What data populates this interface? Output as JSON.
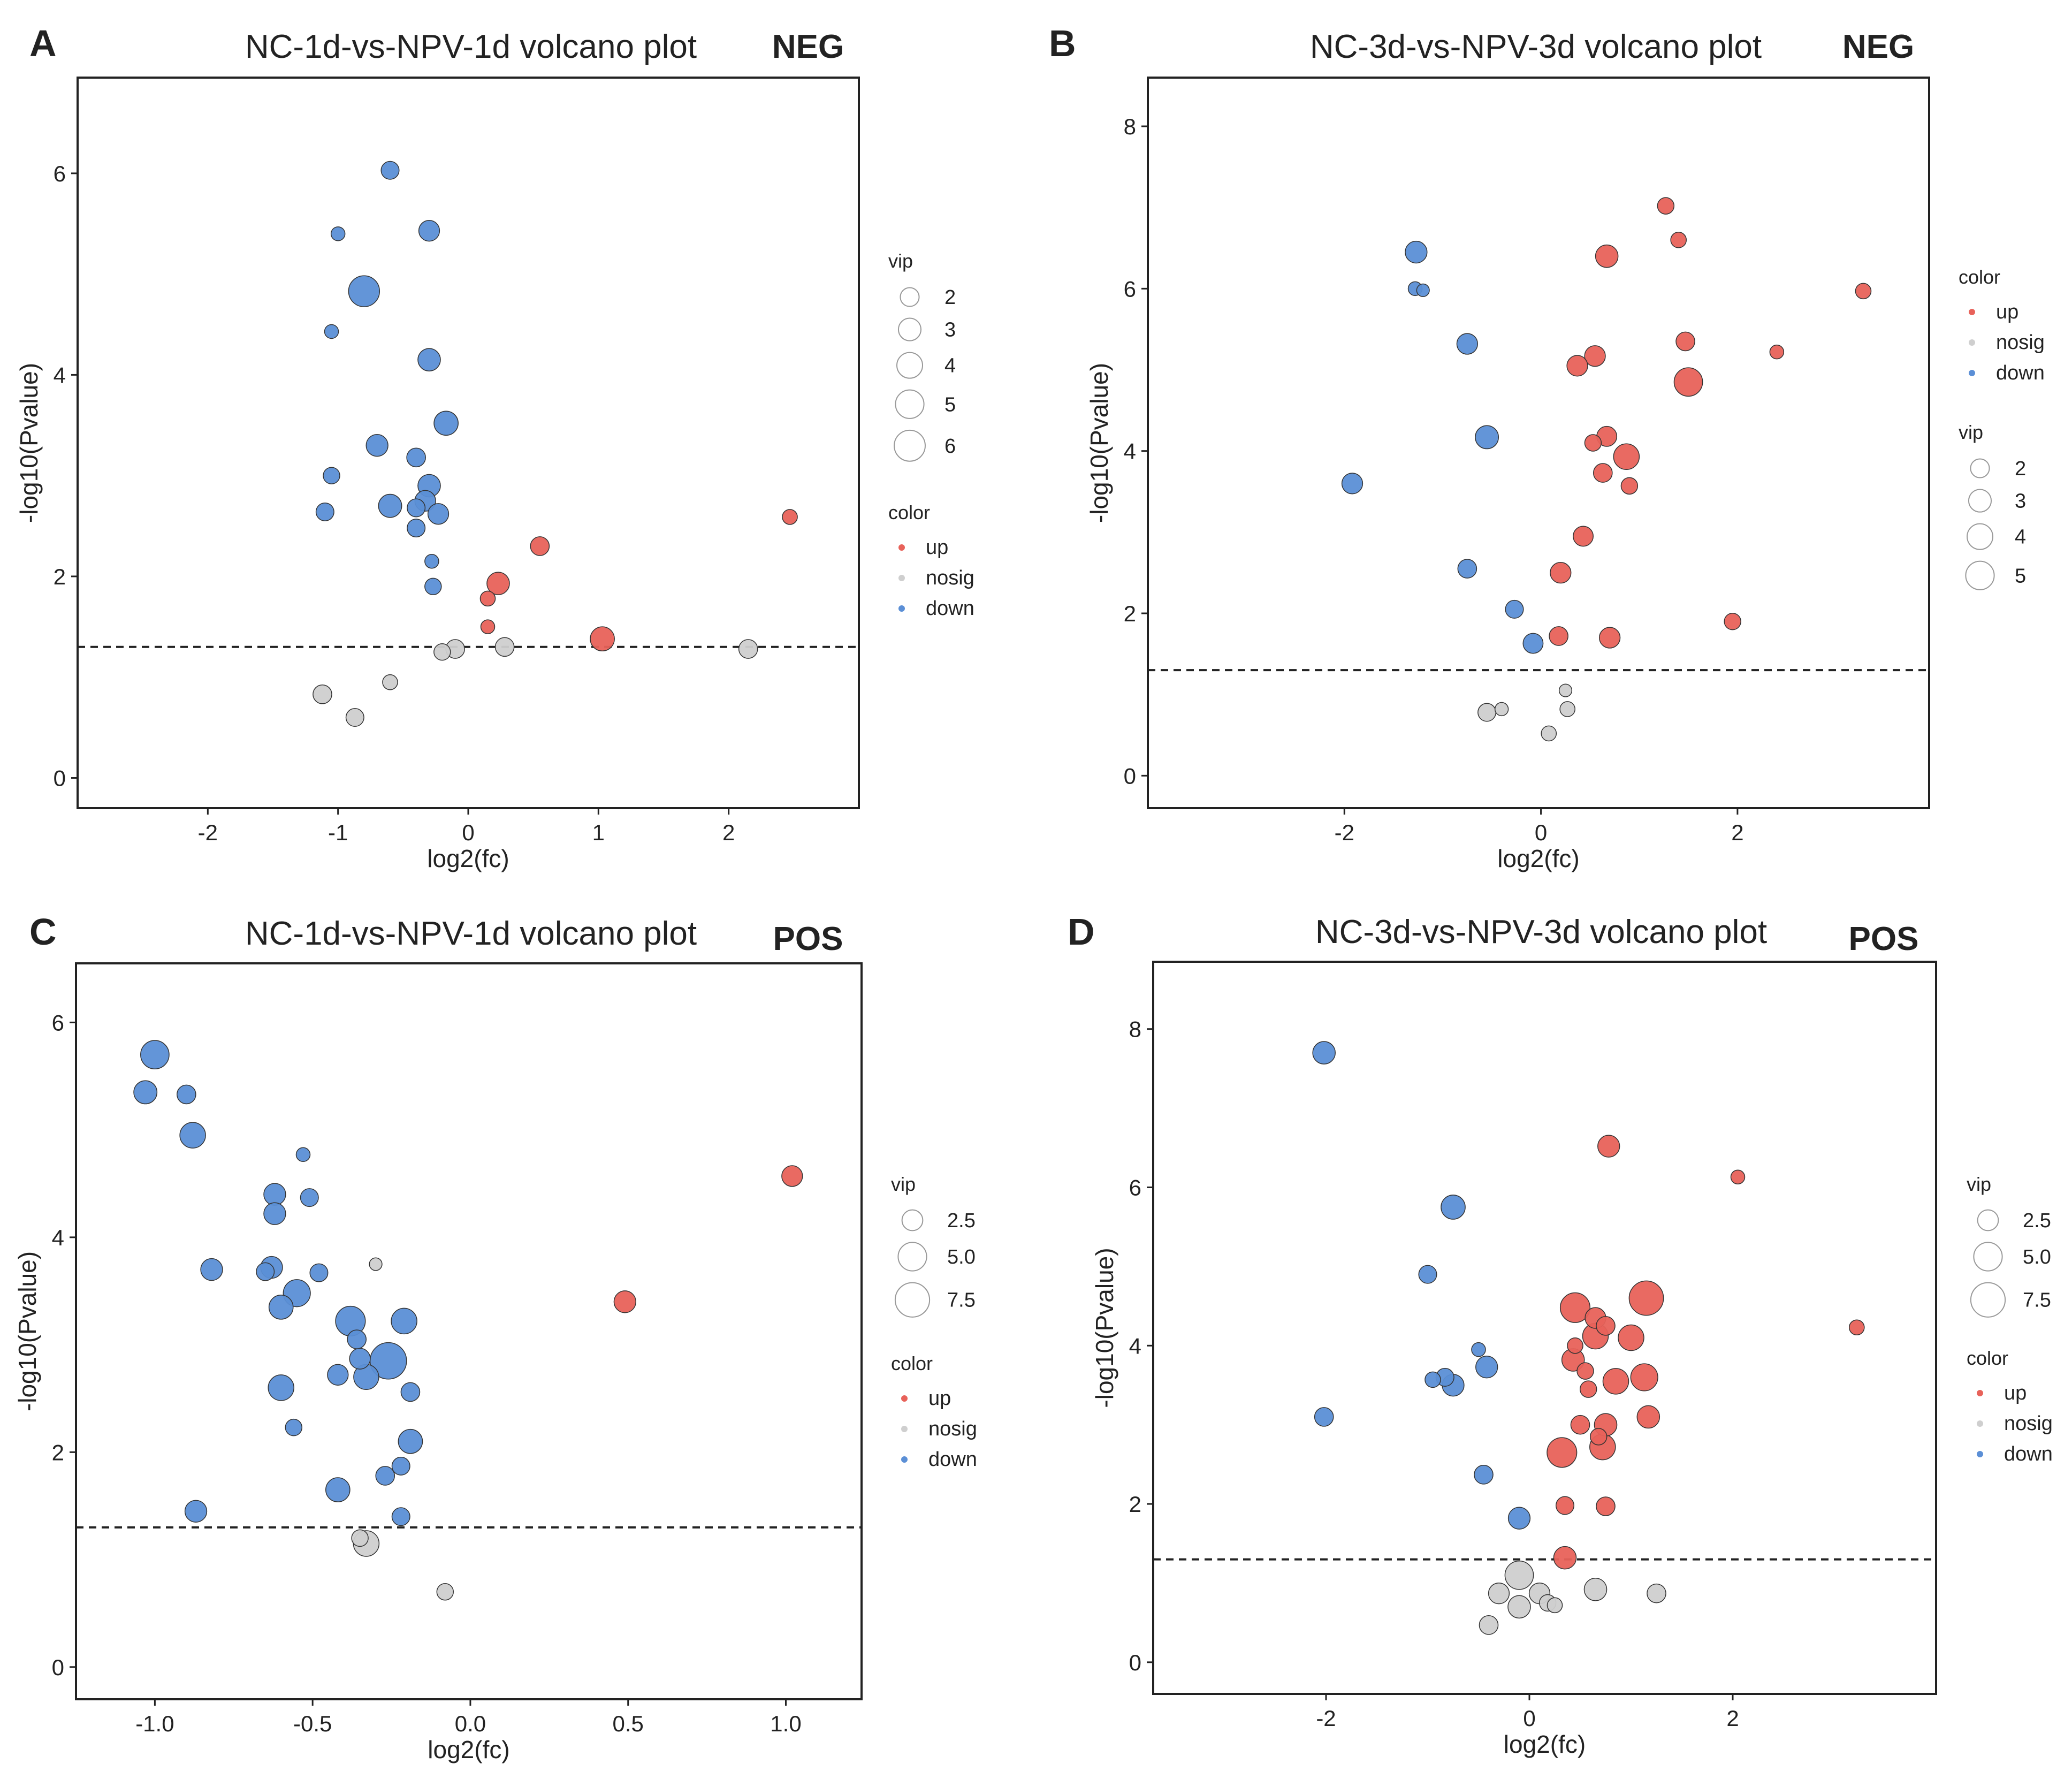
{
  "colors": {
    "up": "#e8625a",
    "nosig": "#cfcfcf",
    "down": "#5b8fd6"
  },
  "legend_text": {
    "vip": "vip",
    "color": "color",
    "up": "up",
    "nosig": "nosig",
    "down": "down"
  },
  "chart_data": [
    {
      "id": "A",
      "letter": "A",
      "type": "scatter",
      "title": "NC-1d-vs-NPV-1d volcano plot",
      "mode": "NEG",
      "xlabel": "log2(fc)",
      "ylabel": "-log10(Pvalue)",
      "xlim": [
        -3.0,
        3.0
      ],
      "ylim": [
        -0.3,
        6.95
      ],
      "xticks": [
        -2,
        -1,
        0,
        1,
        2
      ],
      "xtick_labels": [
        "-2",
        "-1",
        "0",
        "1",
        "2"
      ],
      "yticks": [
        0,
        2,
        4,
        6
      ],
      "ytick_labels": [
        "0",
        "2",
        "4",
        "6"
      ],
      "threshold": 1.3,
      "legend_order": [
        "vip",
        "color"
      ],
      "vip_legend": [
        2,
        3,
        4,
        5,
        6
      ],
      "vip_legend_labels": [
        "2",
        "3",
        "4",
        "5",
        "6"
      ],
      "points": [
        {
          "x": -0.6,
          "y": 6.03,
          "vip": 1.8,
          "c": "down"
        },
        {
          "x": -1.0,
          "y": 5.4,
          "vip": 1.0,
          "c": "down"
        },
        {
          "x": -0.3,
          "y": 5.43,
          "vip": 2.5,
          "c": "down"
        },
        {
          "x": -0.8,
          "y": 4.83,
          "vip": 6.0,
          "c": "down"
        },
        {
          "x": -1.05,
          "y": 4.43,
          "vip": 1.0,
          "c": "down"
        },
        {
          "x": -0.3,
          "y": 4.15,
          "vip": 3.0,
          "c": "down"
        },
        {
          "x": -0.17,
          "y": 3.52,
          "vip": 3.5,
          "c": "down"
        },
        {
          "x": -0.7,
          "y": 3.3,
          "vip": 2.8,
          "c": "down"
        },
        {
          "x": -0.4,
          "y": 3.18,
          "vip": 2.0,
          "c": "down"
        },
        {
          "x": -1.05,
          "y": 3.0,
          "vip": 1.5,
          "c": "down"
        },
        {
          "x": -0.3,
          "y": 2.9,
          "vip": 3.0,
          "c": "down"
        },
        {
          "x": -0.33,
          "y": 2.75,
          "vip": 2.5,
          "c": "down"
        },
        {
          "x": -0.6,
          "y": 2.7,
          "vip": 3.2,
          "c": "down"
        },
        {
          "x": -0.4,
          "y": 2.68,
          "vip": 1.8,
          "c": "down"
        },
        {
          "x": -1.1,
          "y": 2.64,
          "vip": 1.8,
          "c": "down"
        },
        {
          "x": -0.23,
          "y": 2.62,
          "vip": 2.5,
          "c": "down"
        },
        {
          "x": -0.4,
          "y": 2.48,
          "vip": 1.8,
          "c": "down"
        },
        {
          "x": -0.28,
          "y": 2.15,
          "vip": 1.0,
          "c": "down"
        },
        {
          "x": -0.27,
          "y": 1.9,
          "vip": 1.5,
          "c": "down"
        },
        {
          "x": 2.47,
          "y": 2.59,
          "vip": 1.2,
          "c": "up"
        },
        {
          "x": 0.55,
          "y": 2.3,
          "vip": 2.0,
          "c": "up"
        },
        {
          "x": 0.23,
          "y": 1.93,
          "vip": 3.0,
          "c": "up"
        },
        {
          "x": 0.15,
          "y": 1.78,
          "vip": 1.2,
          "c": "up"
        },
        {
          "x": 0.15,
          "y": 1.5,
          "vip": 1.0,
          "c": "up"
        },
        {
          "x": 1.03,
          "y": 1.38,
          "vip": 3.5,
          "c": "up"
        },
        {
          "x": -0.1,
          "y": 1.28,
          "vip": 2.0,
          "c": "nosig"
        },
        {
          "x": -0.2,
          "y": 1.25,
          "vip": 1.5,
          "c": "nosig"
        },
        {
          "x": 0.28,
          "y": 1.3,
          "vip": 2.0,
          "c": "nosig"
        },
        {
          "x": 2.15,
          "y": 1.28,
          "vip": 2.0,
          "c": "nosig"
        },
        {
          "x": -1.12,
          "y": 0.83,
          "vip": 2.0,
          "c": "nosig"
        },
        {
          "x": -0.6,
          "y": 0.95,
          "vip": 1.2,
          "c": "nosig"
        },
        {
          "x": -0.87,
          "y": 0.6,
          "vip": 1.8,
          "c": "nosig"
        }
      ]
    },
    {
      "id": "B",
      "letter": "B",
      "type": "scatter",
      "title": "NC-3d-vs-NPV-3d volcano plot",
      "mode": "NEG",
      "xlabel": "log2(fc)",
      "ylabel": "-log10(Pvalue)",
      "xlim": [
        -4.0,
        3.95
      ],
      "ylim": [
        -0.4,
        8.6
      ],
      "xticks": [
        -2,
        0,
        2
      ],
      "xtick_labels": [
        "-2",
        "0",
        "2"
      ],
      "yticks": [
        0,
        2,
        4,
        6,
        8
      ],
      "ytick_labels": [
        "0",
        "2",
        "4",
        "6",
        "8"
      ],
      "threshold": 1.3,
      "legend_order": [
        "color",
        "vip"
      ],
      "vip_legend": [
        2,
        3,
        4,
        5
      ],
      "vip_legend_labels": [
        "2",
        "3",
        "4",
        "5"
      ],
      "points": [
        {
          "x": 1.27,
          "y": 7.02,
          "vip": 1.5,
          "c": "up"
        },
        {
          "x": 1.4,
          "y": 6.6,
          "vip": 1.3,
          "c": "up"
        },
        {
          "x": 0.67,
          "y": 6.4,
          "vip": 3.0,
          "c": "up"
        },
        {
          "x": 3.28,
          "y": 5.97,
          "vip": 1.3,
          "c": "up"
        },
        {
          "x": 1.47,
          "y": 5.35,
          "vip": 2.0,
          "c": "up"
        },
        {
          "x": 0.55,
          "y": 5.17,
          "vip": 2.5,
          "c": "up"
        },
        {
          "x": 0.37,
          "y": 5.05,
          "vip": 2.5,
          "c": "up"
        },
        {
          "x": 2.4,
          "y": 5.22,
          "vip": 1.0,
          "c": "up"
        },
        {
          "x": 1.5,
          "y": 4.85,
          "vip": 5.0,
          "c": "up"
        },
        {
          "x": 0.67,
          "y": 4.18,
          "vip": 2.3,
          "c": "up"
        },
        {
          "x": 0.53,
          "y": 4.1,
          "vip": 1.5,
          "c": "up"
        },
        {
          "x": 0.87,
          "y": 3.93,
          "vip": 4.0,
          "c": "up"
        },
        {
          "x": 0.63,
          "y": 3.73,
          "vip": 2.0,
          "c": "up"
        },
        {
          "x": 0.9,
          "y": 3.57,
          "vip": 1.5,
          "c": "up"
        },
        {
          "x": 0.43,
          "y": 2.95,
          "vip": 2.3,
          "c": "up"
        },
        {
          "x": 0.2,
          "y": 2.5,
          "vip": 2.5,
          "c": "up"
        },
        {
          "x": 1.95,
          "y": 1.9,
          "vip": 1.5,
          "c": "up"
        },
        {
          "x": 0.18,
          "y": 1.72,
          "vip": 2.0,
          "c": "up"
        },
        {
          "x": 0.7,
          "y": 1.7,
          "vip": 2.5,
          "c": "up"
        },
        {
          "x": -1.27,
          "y": 6.45,
          "vip": 2.8,
          "c": "down"
        },
        {
          "x": -1.28,
          "y": 6.0,
          "vip": 1.0,
          "c": "down"
        },
        {
          "x": -1.2,
          "y": 5.98,
          "vip": 0.8,
          "c": "down"
        },
        {
          "x": -0.75,
          "y": 5.32,
          "vip": 2.5,
          "c": "down"
        },
        {
          "x": -0.55,
          "y": 4.17,
          "vip": 3.2,
          "c": "down"
        },
        {
          "x": -1.92,
          "y": 3.6,
          "vip": 2.5,
          "c": "down"
        },
        {
          "x": -0.75,
          "y": 2.55,
          "vip": 2.0,
          "c": "down"
        },
        {
          "x": -0.27,
          "y": 2.05,
          "vip": 1.8,
          "c": "down"
        },
        {
          "x": -0.08,
          "y": 1.63,
          "vip": 2.3,
          "c": "down"
        },
        {
          "x": -0.55,
          "y": 0.78,
          "vip": 1.8,
          "c": "nosig"
        },
        {
          "x": -0.4,
          "y": 0.82,
          "vip": 0.9,
          "c": "nosig"
        },
        {
          "x": 0.27,
          "y": 0.82,
          "vip": 1.2,
          "c": "nosig"
        },
        {
          "x": 0.25,
          "y": 1.05,
          "vip": 0.8,
          "c": "nosig"
        },
        {
          "x": 0.08,
          "y": 0.52,
          "vip": 1.2,
          "c": "nosig"
        }
      ]
    },
    {
      "id": "C",
      "letter": "C",
      "type": "scatter",
      "title": "NC-1d-vs-NPV-1d volcano plot",
      "mode": "POS",
      "xlabel": "log2(fc)",
      "ylabel": "-log10(Pvalue)",
      "xlim": [
        -1.25,
        1.24
      ],
      "ylim": [
        -0.3,
        6.55
      ],
      "xticks": [
        -1.0,
        -0.5,
        0.0,
        0.5,
        1.0
      ],
      "xtick_labels": [
        "-1.0",
        "-0.5",
        "0.0",
        "0.5",
        "1.0"
      ],
      "yticks": [
        0,
        2,
        4,
        6
      ],
      "ytick_labels": [
        "0",
        "2",
        "4",
        "6"
      ],
      "threshold": 1.3,
      "legend_order": [
        "vip",
        "color"
      ],
      "vip_legend": [
        2.5,
        5.0,
        7.5
      ],
      "vip_legend_labels": [
        "2.5",
        "5.0",
        "7.5"
      ],
      "points": [
        {
          "x": -1.0,
          "y": 5.7,
          "vip": 5.0,
          "c": "down"
        },
        {
          "x": -1.03,
          "y": 5.35,
          "vip": 3.2,
          "c": "down"
        },
        {
          "x": -0.9,
          "y": 5.33,
          "vip": 2.0,
          "c": "down"
        },
        {
          "x": -0.88,
          "y": 4.95,
          "vip": 4.0,
          "c": "down"
        },
        {
          "x": -0.53,
          "y": 4.77,
          "vip": 1.0,
          "c": "down"
        },
        {
          "x": -0.62,
          "y": 4.4,
          "vip": 2.8,
          "c": "down"
        },
        {
          "x": -0.51,
          "y": 4.37,
          "vip": 1.8,
          "c": "down"
        },
        {
          "x": -0.62,
          "y": 4.22,
          "vip": 2.8,
          "c": "down"
        },
        {
          "x": -0.82,
          "y": 3.7,
          "vip": 2.8,
          "c": "down"
        },
        {
          "x": -0.63,
          "y": 3.72,
          "vip": 2.8,
          "c": "down"
        },
        {
          "x": -0.65,
          "y": 3.68,
          "vip": 1.8,
          "c": "down"
        },
        {
          "x": -0.48,
          "y": 3.67,
          "vip": 1.8,
          "c": "down"
        },
        {
          "x": -0.55,
          "y": 3.48,
          "vip": 4.5,
          "c": "down"
        },
        {
          "x": -0.6,
          "y": 3.35,
          "vip": 3.5,
          "c": "down"
        },
        {
          "x": -0.38,
          "y": 3.22,
          "vip": 5.5,
          "c": "down"
        },
        {
          "x": -0.21,
          "y": 3.22,
          "vip": 4.0,
          "c": "down"
        },
        {
          "x": -0.36,
          "y": 3.05,
          "vip": 2.0,
          "c": "down"
        },
        {
          "x": -0.35,
          "y": 2.87,
          "vip": 2.5,
          "c": "down"
        },
        {
          "x": -0.26,
          "y": 2.85,
          "vip": 8.5,
          "c": "down"
        },
        {
          "x": -0.42,
          "y": 2.72,
          "vip": 2.5,
          "c": "down"
        },
        {
          "x": -0.33,
          "y": 2.7,
          "vip": 3.8,
          "c": "down"
        },
        {
          "x": -0.6,
          "y": 2.6,
          "vip": 4.0,
          "c": "down"
        },
        {
          "x": -0.19,
          "y": 2.56,
          "vip": 2.0,
          "c": "down"
        },
        {
          "x": -0.56,
          "y": 2.23,
          "vip": 1.5,
          "c": "down"
        },
        {
          "x": -0.19,
          "y": 2.1,
          "vip": 3.5,
          "c": "down"
        },
        {
          "x": -0.22,
          "y": 1.87,
          "vip": 1.8,
          "c": "down"
        },
        {
          "x": -0.27,
          "y": 1.78,
          "vip": 2.0,
          "c": "down"
        },
        {
          "x": -0.42,
          "y": 1.65,
          "vip": 3.5,
          "c": "down"
        },
        {
          "x": -0.87,
          "y": 1.45,
          "vip": 2.8,
          "c": "down"
        },
        {
          "x": -0.22,
          "y": 1.4,
          "vip": 1.8,
          "c": "down"
        },
        {
          "x": 1.02,
          "y": 4.57,
          "vip": 2.5,
          "c": "up"
        },
        {
          "x": 0.49,
          "y": 3.4,
          "vip": 2.8,
          "c": "up"
        },
        {
          "x": -0.3,
          "y": 3.75,
          "vip": 0.8,
          "c": "nosig"
        },
        {
          "x": -0.33,
          "y": 1.15,
          "vip": 4.0,
          "c": "nosig"
        },
        {
          "x": -0.35,
          "y": 1.2,
          "vip": 1.5,
          "c": "nosig"
        },
        {
          "x": -0.08,
          "y": 0.7,
          "vip": 1.5,
          "c": "nosig"
        }
      ]
    },
    {
      "id": "D",
      "letter": "D",
      "type": "scatter",
      "title": "NC-3d-vs-NPV-3d volcano plot",
      "mode": "POS",
      "xlabel": "log2(fc)",
      "ylabel": "-log10(Pvalue)",
      "xlim": [
        -3.7,
        4.0
      ],
      "ylim": [
        -0.4,
        8.85
      ],
      "xticks": [
        -2,
        0,
        2
      ],
      "xtick_labels": [
        "-2",
        "0",
        "2"
      ],
      "yticks": [
        0,
        2,
        4,
        6,
        8
      ],
      "ytick_labels": [
        "0",
        "2",
        "4",
        "6",
        "8"
      ],
      "threshold": 1.3,
      "legend_order": [
        "vip",
        "color"
      ],
      "vip_legend": [
        2.5,
        5.0,
        7.5
      ],
      "vip_legend_labels": [
        "2.5",
        "5.0",
        "7.5"
      ],
      "points": [
        {
          "x": -2.02,
          "y": 7.7,
          "vip": 3.0,
          "c": "down"
        },
        {
          "x": -0.75,
          "y": 5.75,
          "vip": 3.5,
          "c": "down"
        },
        {
          "x": -1.0,
          "y": 4.9,
          "vip": 1.8,
          "c": "down"
        },
        {
          "x": -0.5,
          "y": 3.95,
          "vip": 1.0,
          "c": "down"
        },
        {
          "x": -0.42,
          "y": 3.73,
          "vip": 2.8,
          "c": "down"
        },
        {
          "x": -0.95,
          "y": 3.57,
          "vip": 1.3,
          "c": "down"
        },
        {
          "x": -0.83,
          "y": 3.6,
          "vip": 1.8,
          "c": "down"
        },
        {
          "x": -0.75,
          "y": 3.5,
          "vip": 2.8,
          "c": "down"
        },
        {
          "x": -2.02,
          "y": 3.1,
          "vip": 2.0,
          "c": "down"
        },
        {
          "x": -0.45,
          "y": 2.37,
          "vip": 2.0,
          "c": "down"
        },
        {
          "x": -0.1,
          "y": 1.82,
          "vip": 2.8,
          "c": "down"
        },
        {
          "x": 0.78,
          "y": 6.52,
          "vip": 2.8,
          "c": "up"
        },
        {
          "x": 2.05,
          "y": 6.13,
          "vip": 1.0,
          "c": "up"
        },
        {
          "x": 3.22,
          "y": 4.23,
          "vip": 1.2,
          "c": "up"
        },
        {
          "x": 1.15,
          "y": 4.6,
          "vip": 7.5,
          "c": "up"
        },
        {
          "x": 0.45,
          "y": 4.48,
          "vip": 5.5,
          "c": "up"
        },
        {
          "x": 0.65,
          "y": 4.35,
          "vip": 2.5,
          "c": "up"
        },
        {
          "x": 0.75,
          "y": 4.25,
          "vip": 2.0,
          "c": "up"
        },
        {
          "x": 0.65,
          "y": 4.12,
          "vip": 4.0,
          "c": "up"
        },
        {
          "x": 1.0,
          "y": 4.1,
          "vip": 4.0,
          "c": "up"
        },
        {
          "x": 0.45,
          "y": 4.0,
          "vip": 1.3,
          "c": "up"
        },
        {
          "x": 0.43,
          "y": 3.82,
          "vip": 3.0,
          "c": "up"
        },
        {
          "x": 0.55,
          "y": 3.68,
          "vip": 1.5,
          "c": "up"
        },
        {
          "x": 1.13,
          "y": 3.6,
          "vip": 4.5,
          "c": "up"
        },
        {
          "x": 0.85,
          "y": 3.55,
          "vip": 4.0,
          "c": "up"
        },
        {
          "x": 0.58,
          "y": 3.45,
          "vip": 1.5,
          "c": "up"
        },
        {
          "x": 1.17,
          "y": 3.1,
          "vip": 3.0,
          "c": "up"
        },
        {
          "x": 0.75,
          "y": 3.0,
          "vip": 3.0,
          "c": "up"
        },
        {
          "x": 0.5,
          "y": 3.0,
          "vip": 2.0,
          "c": "up"
        },
        {
          "x": 0.68,
          "y": 2.85,
          "vip": 1.5,
          "c": "up"
        },
        {
          "x": 0.72,
          "y": 2.72,
          "vip": 4.0,
          "c": "up"
        },
        {
          "x": 0.32,
          "y": 2.65,
          "vip": 5.5,
          "c": "up"
        },
        {
          "x": 0.35,
          "y": 1.98,
          "vip": 1.8,
          "c": "up"
        },
        {
          "x": 0.75,
          "y": 1.97,
          "vip": 2.0,
          "c": "up"
        },
        {
          "x": 0.35,
          "y": 1.32,
          "vip": 3.0,
          "c": "up"
        },
        {
          "x": -0.1,
          "y": 1.1,
          "vip": 5.0,
          "c": "nosig"
        },
        {
          "x": -0.3,
          "y": 0.87,
          "vip": 2.5,
          "c": "nosig"
        },
        {
          "x": 0.1,
          "y": 0.87,
          "vip": 2.5,
          "c": "nosig"
        },
        {
          "x": 0.18,
          "y": 0.75,
          "vip": 1.5,
          "c": "nosig"
        },
        {
          "x": 0.25,
          "y": 0.72,
          "vip": 1.2,
          "c": "nosig"
        },
        {
          "x": 0.65,
          "y": 0.92,
          "vip": 3.0,
          "c": "nosig"
        },
        {
          "x": 1.25,
          "y": 0.87,
          "vip": 2.0,
          "c": "nosig"
        },
        {
          "x": -0.1,
          "y": 0.7,
          "vip": 3.0,
          "c": "nosig"
        },
        {
          "x": -0.4,
          "y": 0.47,
          "vip": 2.0,
          "c": "nosig"
        }
      ]
    }
  ]
}
